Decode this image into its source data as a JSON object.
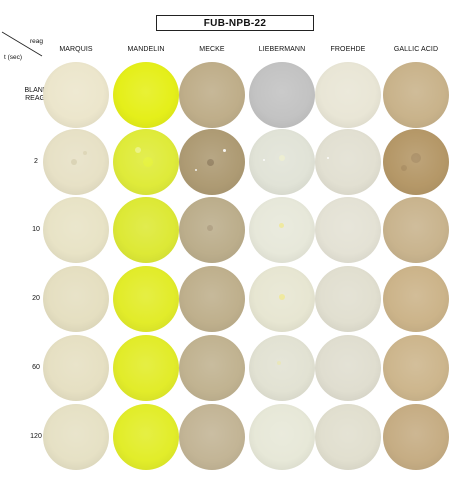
{
  "title": "FUB-NPB-22",
  "corner": {
    "reagent_label": "reag",
    "time_label": "t (sec)"
  },
  "columns": [
    {
      "label": "MARQUIS"
    },
    {
      "label": "MANDELIN"
    },
    {
      "label": "MECKE"
    },
    {
      "label": "LIEBERMANN"
    },
    {
      "label": "FROEHDE"
    },
    {
      "label": "GALLIC ACID"
    }
  ],
  "rows": [
    {
      "label": "BLANK\nREAG."
    },
    {
      "label": "2"
    },
    {
      "label": "10"
    },
    {
      "label": "20"
    },
    {
      "label": "60"
    },
    {
      "label": "120"
    }
  ],
  "colors": {
    "wells": [
      [
        "#ece6cc",
        "#e5ef1a",
        "#bfae8a",
        "#c3c3c3",
        "#e9e6d6",
        "#c9b38b"
      ],
      [
        "#e7e1c6",
        "#dfeb3a",
        "#ae9b74",
        "#e1e3d7",
        "#e2e0d2",
        "#b59868"
      ],
      [
        "#e8e3c6",
        "#dde936",
        "#bcae8c",
        "#e7e8da",
        "#e4e2d5",
        "#c9b48e"
      ],
      [
        "#e5dfc1",
        "#e2ec2a",
        "#bfb08d",
        "#e7e6d2",
        "#e1dfd0",
        "#ccb48a"
      ],
      [
        "#e6e0c3",
        "#e2ec2a",
        "#c1b391",
        "#e2e2d3",
        "#e0ded0",
        "#cdb68d"
      ],
      [
        "#e6e1c5",
        "#e2ed2a",
        "#c3b596",
        "#e7e8d8",
        "#e1dfcf",
        "#c6ad84"
      ]
    ]
  }
}
